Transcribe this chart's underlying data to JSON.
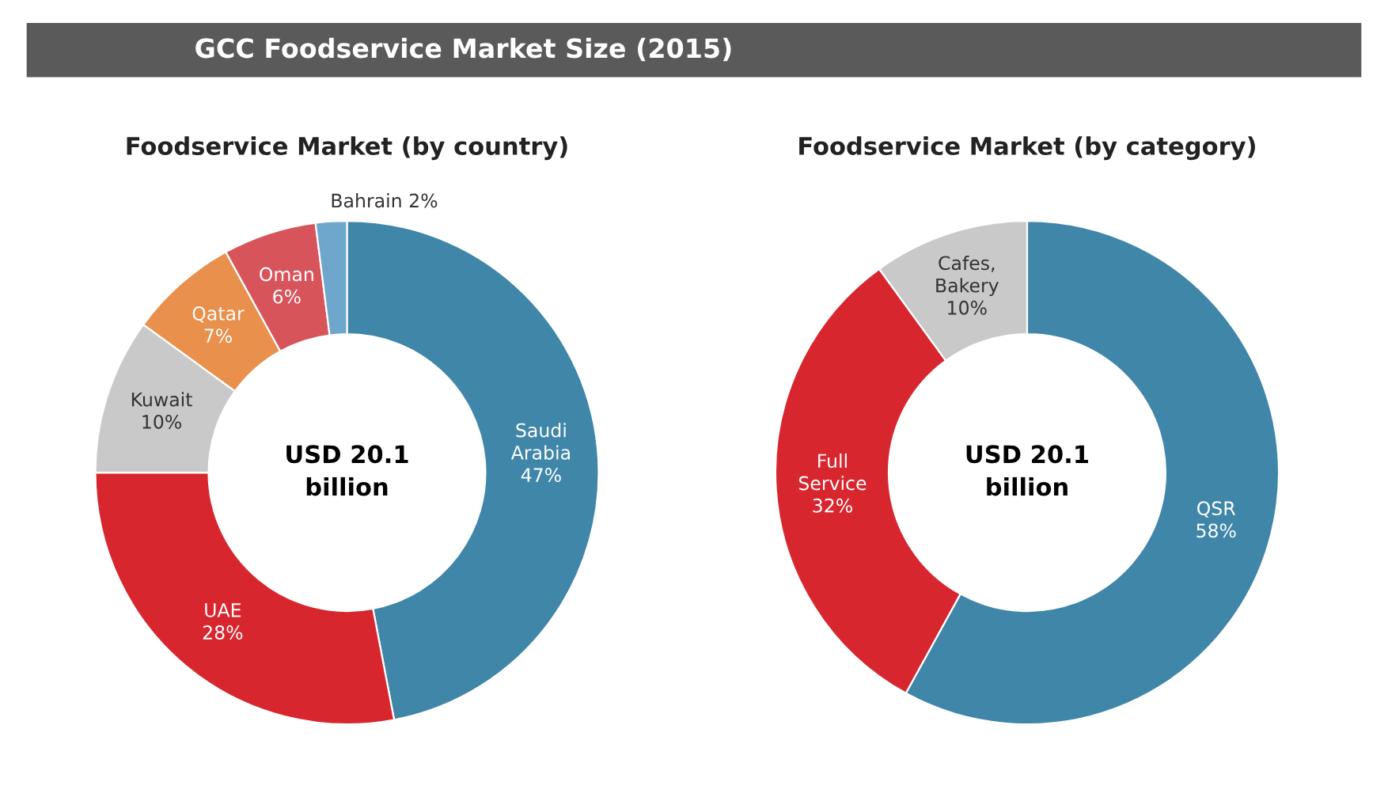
{
  "chart_data": [
    {
      "type": "donut",
      "title": "GCC Foodservice Market Size (2015)",
      "subtitle": "Foodservice Market (by country)",
      "categories": [
        "Saudi Arabia",
        "UAE",
        "Kuwait",
        "Qatar",
        "Oman",
        "Bahrain"
      ],
      "values": [
        47,
        28,
        10,
        7,
        6,
        2
      ],
      "value_labels": [
        "47%",
        "28%",
        "10%",
        "7%",
        "6%",
        "2%"
      ],
      "colors": [
        "#3f86a9",
        "#d8262f",
        "#c9c9c9",
        "#e8904c",
        "#d8545b",
        "#6ea7cb"
      ],
      "annotations": [
        "USD 20.1\nbillion"
      ]
    },
    {
      "type": "donut",
      "subtitle": "Foodservice Market (by category)",
      "categories": [
        "QSR",
        "Full Service",
        "Cafes, Bakery"
      ],
      "values": [
        58,
        32,
        10
      ],
      "value_labels": [
        "58%",
        "32%",
        "10%"
      ],
      "colors": [
        "#3f86a9",
        "#d8262f",
        "#c9c9c9"
      ],
      "annotations": [
        "USD 20.1\nbillion"
      ]
    }
  ]
}
